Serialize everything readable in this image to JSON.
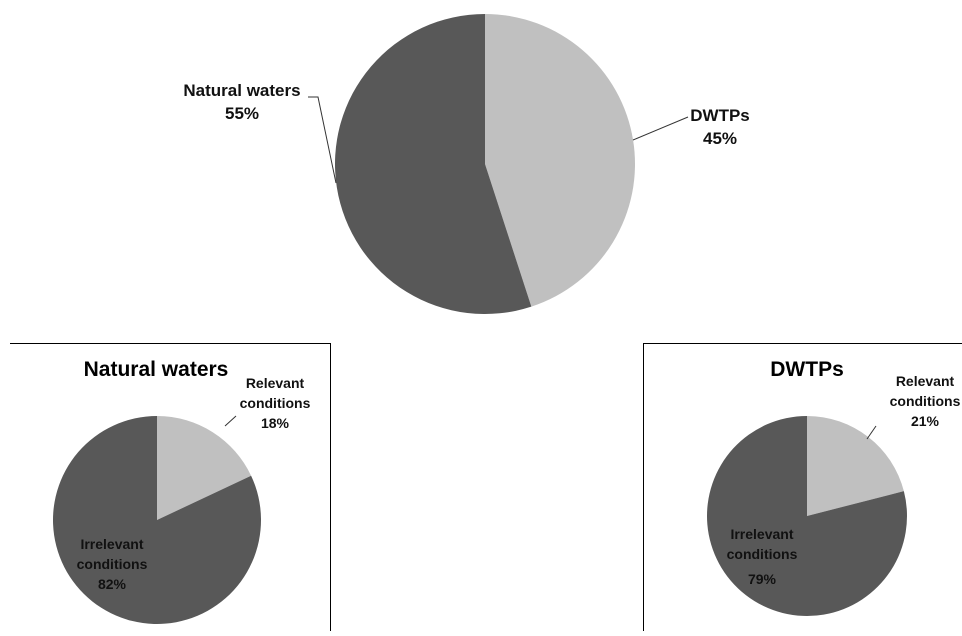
{
  "colors": {
    "dark": "#585858",
    "light": "#c0c0c0",
    "leader": "#333333"
  },
  "chart_data": [
    {
      "type": "pie",
      "title": "",
      "slices": [
        {
          "label": "DWTPs",
          "value": 45,
          "value_label": "45%",
          "color": "#c0c0c0"
        },
        {
          "label": "Natural waters",
          "value": 55,
          "value_label": "55%",
          "color": "#585858"
        }
      ]
    },
    {
      "type": "pie",
      "title": "Natural waters",
      "slices": [
        {
          "label_lines": [
            "Relevant",
            "conditions"
          ],
          "value": 18,
          "value_label": "18%",
          "color": "#c0c0c0"
        },
        {
          "label_lines": [
            "Irrelevant",
            "conditions"
          ],
          "value": 82,
          "value_label": "82%",
          "color": "#585858"
        }
      ]
    },
    {
      "type": "pie",
      "title": "DWTPs",
      "slices": [
        {
          "label_lines": [
            "Relevant",
            "conditions"
          ],
          "value": 21,
          "value_label": "21%",
          "color": "#c0c0c0"
        },
        {
          "label_lines": [
            "Irrelevant",
            "conditions"
          ],
          "value": 79,
          "value_label": "79%",
          "color": "#585858"
        }
      ]
    }
  ]
}
